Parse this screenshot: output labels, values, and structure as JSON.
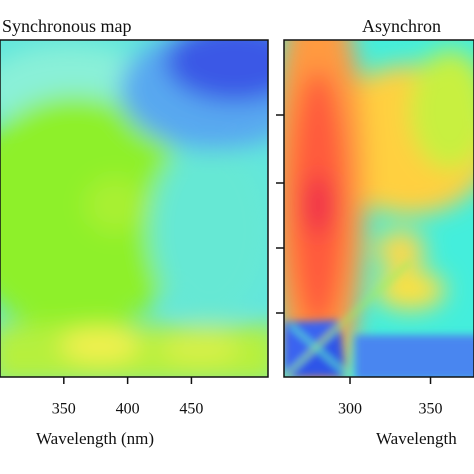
{
  "chart_data": [
    {
      "type": "heatmap",
      "title": "Synchronous map",
      "x_label": "Wavelength (nm)",
      "xlim": [
        300,
        510
      ],
      "xticks": [
        350,
        400,
        450
      ]
    },
    {
      "type": "heatmap",
      "title": "Asynchron",
      "x_label": "Wavelength",
      "xlim": [
        259,
        377
      ],
      "xticks": [
        300,
        350
      ]
    }
  ]
}
